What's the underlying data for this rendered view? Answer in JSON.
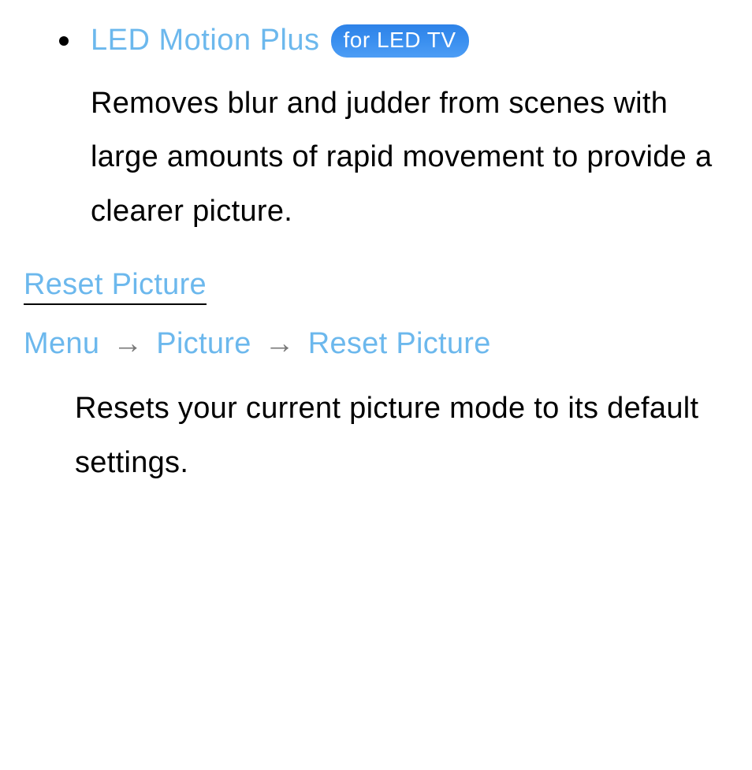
{
  "feature": {
    "title": "LED Motion Plus",
    "badge": "for LED TV",
    "description": "Removes blur and judder from scenes with large amounts of rapid movement to provide a clearer picture."
  },
  "section": {
    "heading": "Reset Picture",
    "breadcrumb": {
      "part1": "Menu",
      "part2": "Picture",
      "part3": "Reset Picture",
      "arrow": "→"
    },
    "description": "Resets your current picture mode to its default settings."
  },
  "colors": {
    "link_blue": "#6cb8ed",
    "badge_gradient_top": "#2d82e8",
    "badge_gradient_bottom": "#4d9df5",
    "text_black": "#000000",
    "arrow_gray": "#777777",
    "background": "#ffffff"
  },
  "typography": {
    "body_fontsize": 38,
    "badge_fontsize": 28,
    "line_height": 1.8
  }
}
